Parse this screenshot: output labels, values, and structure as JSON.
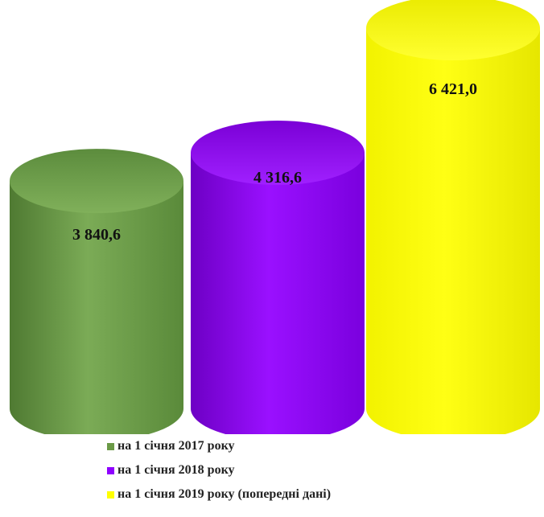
{
  "chart_data": {
    "type": "bar",
    "style": "3d-cylinder",
    "grid": false,
    "legend_position": "bottom",
    "categories": [
      "на 1 січня 2017 року",
      "на 1 січня 2018 року",
      "на 1 січня 2019 року (попередні дані)"
    ],
    "values": [
      3840.6,
      4316.6,
      6421.0
    ],
    "value_labels": [
      "3 840,6",
      "4 316,6",
      "6 421,0"
    ],
    "colors": [
      "#6b9a47",
      "#8f00ff",
      "#ffff00"
    ]
  },
  "legend": {
    "items": [
      {
        "label": "на 1 січня 2017 року",
        "color": "#6b9a47"
      },
      {
        "label": "на 1 січня 2018 року",
        "color": "#8f00ff"
      },
      {
        "label": "на 1 січня 2019 року (попередні дані)",
        "color": "#ffff00"
      }
    ]
  }
}
